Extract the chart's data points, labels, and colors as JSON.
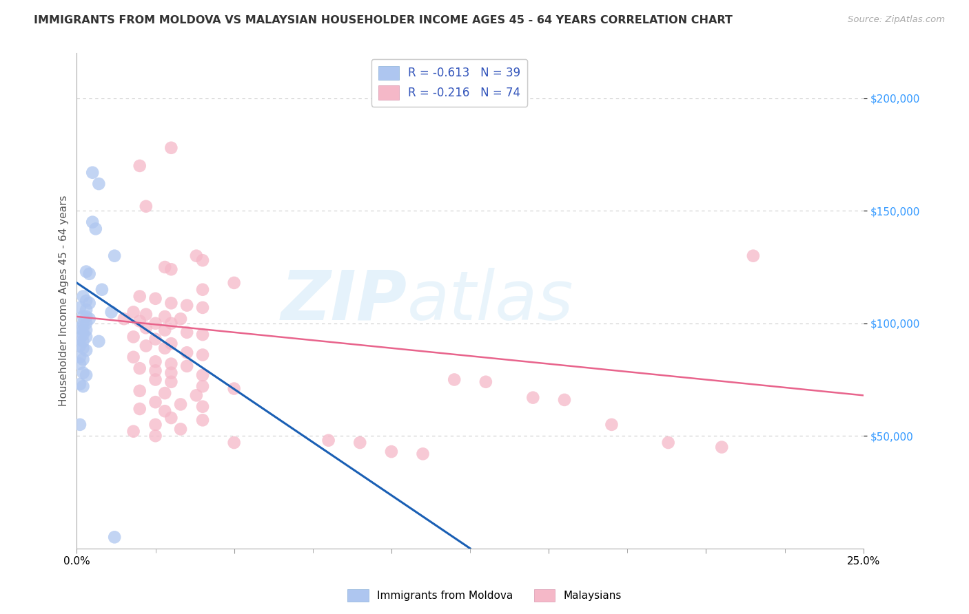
{
  "title": "IMMIGRANTS FROM MOLDOVA VS MALAYSIAN HOUSEHOLDER INCOME AGES 45 - 64 YEARS CORRELATION CHART",
  "source": "Source: ZipAtlas.com",
  "ylabel": "Householder Income Ages 45 - 64 years",
  "xlim": [
    0.0,
    0.25
  ],
  "ylim": [
    0,
    220000
  ],
  "yticks": [
    50000,
    100000,
    150000,
    200000
  ],
  "ytick_labels": [
    "$50,000",
    "$100,000",
    "$150,000",
    "$200,000"
  ],
  "xticks": [
    0.0,
    0.05,
    0.1,
    0.15,
    0.2,
    0.25
  ],
  "xtick_labels": [
    "0.0%",
    "",
    "",
    "",
    "",
    "25.0%"
  ],
  "grid_color": "#cccccc",
  "background_color": "#ffffff",
  "legend1_label": "R = -0.613   N = 39",
  "legend2_label": "R = -0.216   N = 74",
  "moldova_color": "#aec6f0",
  "malaysian_color": "#f5b8c8",
  "moldova_line_color": "#1a5fb4",
  "malaysian_line_color": "#e8648c",
  "moldova_scatter": [
    [
      0.005,
      167000
    ],
    [
      0.007,
      162000
    ],
    [
      0.005,
      145000
    ],
    [
      0.006,
      142000
    ],
    [
      0.012,
      130000
    ],
    [
      0.003,
      123000
    ],
    [
      0.004,
      122000
    ],
    [
      0.008,
      115000
    ],
    [
      0.002,
      112000
    ],
    [
      0.003,
      110000
    ],
    [
      0.004,
      109000
    ],
    [
      0.001,
      107000
    ],
    [
      0.003,
      106000
    ],
    [
      0.002,
      103000
    ],
    [
      0.003,
      103000
    ],
    [
      0.004,
      102000
    ],
    [
      0.002,
      100000
    ],
    [
      0.003,
      100000
    ],
    [
      0.001,
      98000
    ],
    [
      0.002,
      97000
    ],
    [
      0.003,
      97000
    ],
    [
      0.002,
      95000
    ],
    [
      0.003,
      94000
    ],
    [
      0.001,
      93000
    ],
    [
      0.002,
      92000
    ],
    [
      0.001,
      90000
    ],
    [
      0.002,
      89000
    ],
    [
      0.003,
      88000
    ],
    [
      0.001,
      85000
    ],
    [
      0.002,
      84000
    ],
    [
      0.001,
      82000
    ],
    [
      0.002,
      78000
    ],
    [
      0.003,
      77000
    ],
    [
      0.001,
      73000
    ],
    [
      0.002,
      72000
    ],
    [
      0.001,
      55000
    ],
    [
      0.007,
      92000
    ],
    [
      0.011,
      105000
    ],
    [
      0.012,
      5000
    ]
  ],
  "malaysian_scatter": [
    [
      0.02,
      170000
    ],
    [
      0.03,
      178000
    ],
    [
      0.022,
      152000
    ],
    [
      0.038,
      130000
    ],
    [
      0.04,
      128000
    ],
    [
      0.028,
      125000
    ],
    [
      0.03,
      124000
    ],
    [
      0.05,
      118000
    ],
    [
      0.04,
      115000
    ],
    [
      0.02,
      112000
    ],
    [
      0.025,
      111000
    ],
    [
      0.03,
      109000
    ],
    [
      0.035,
      108000
    ],
    [
      0.04,
      107000
    ],
    [
      0.018,
      105000
    ],
    [
      0.022,
      104000
    ],
    [
      0.028,
      103000
    ],
    [
      0.033,
      102000
    ],
    [
      0.015,
      102000
    ],
    [
      0.02,
      101000
    ],
    [
      0.025,
      100000
    ],
    [
      0.03,
      100000
    ],
    [
      0.022,
      98000
    ],
    [
      0.028,
      97000
    ],
    [
      0.035,
      96000
    ],
    [
      0.04,
      95000
    ],
    [
      0.018,
      94000
    ],
    [
      0.025,
      93000
    ],
    [
      0.03,
      91000
    ],
    [
      0.022,
      90000
    ],
    [
      0.028,
      89000
    ],
    [
      0.035,
      87000
    ],
    [
      0.04,
      86000
    ],
    [
      0.018,
      85000
    ],
    [
      0.025,
      83000
    ],
    [
      0.03,
      82000
    ],
    [
      0.035,
      81000
    ],
    [
      0.02,
      80000
    ],
    [
      0.025,
      79000
    ],
    [
      0.03,
      78000
    ],
    [
      0.04,
      77000
    ],
    [
      0.025,
      75000
    ],
    [
      0.03,
      74000
    ],
    [
      0.04,
      72000
    ],
    [
      0.05,
      71000
    ],
    [
      0.02,
      70000
    ],
    [
      0.028,
      69000
    ],
    [
      0.038,
      68000
    ],
    [
      0.025,
      65000
    ],
    [
      0.033,
      64000
    ],
    [
      0.04,
      63000
    ],
    [
      0.02,
      62000
    ],
    [
      0.028,
      61000
    ],
    [
      0.03,
      58000
    ],
    [
      0.04,
      57000
    ],
    [
      0.025,
      55000
    ],
    [
      0.033,
      53000
    ],
    [
      0.018,
      52000
    ],
    [
      0.025,
      50000
    ],
    [
      0.05,
      47000
    ],
    [
      0.08,
      48000
    ],
    [
      0.09,
      47000
    ],
    [
      0.1,
      43000
    ],
    [
      0.11,
      42000
    ],
    [
      0.12,
      75000
    ],
    [
      0.13,
      74000
    ],
    [
      0.145,
      67000
    ],
    [
      0.155,
      66000
    ],
    [
      0.17,
      55000
    ],
    [
      0.188,
      47000
    ],
    [
      0.205,
      45000
    ],
    [
      0.215,
      130000
    ]
  ],
  "moldova_line": [
    [
      0.0,
      118000
    ],
    [
      0.125,
      0
    ]
  ],
  "malaysian_line": [
    [
      0.0,
      103000
    ],
    [
      0.25,
      68000
    ]
  ]
}
